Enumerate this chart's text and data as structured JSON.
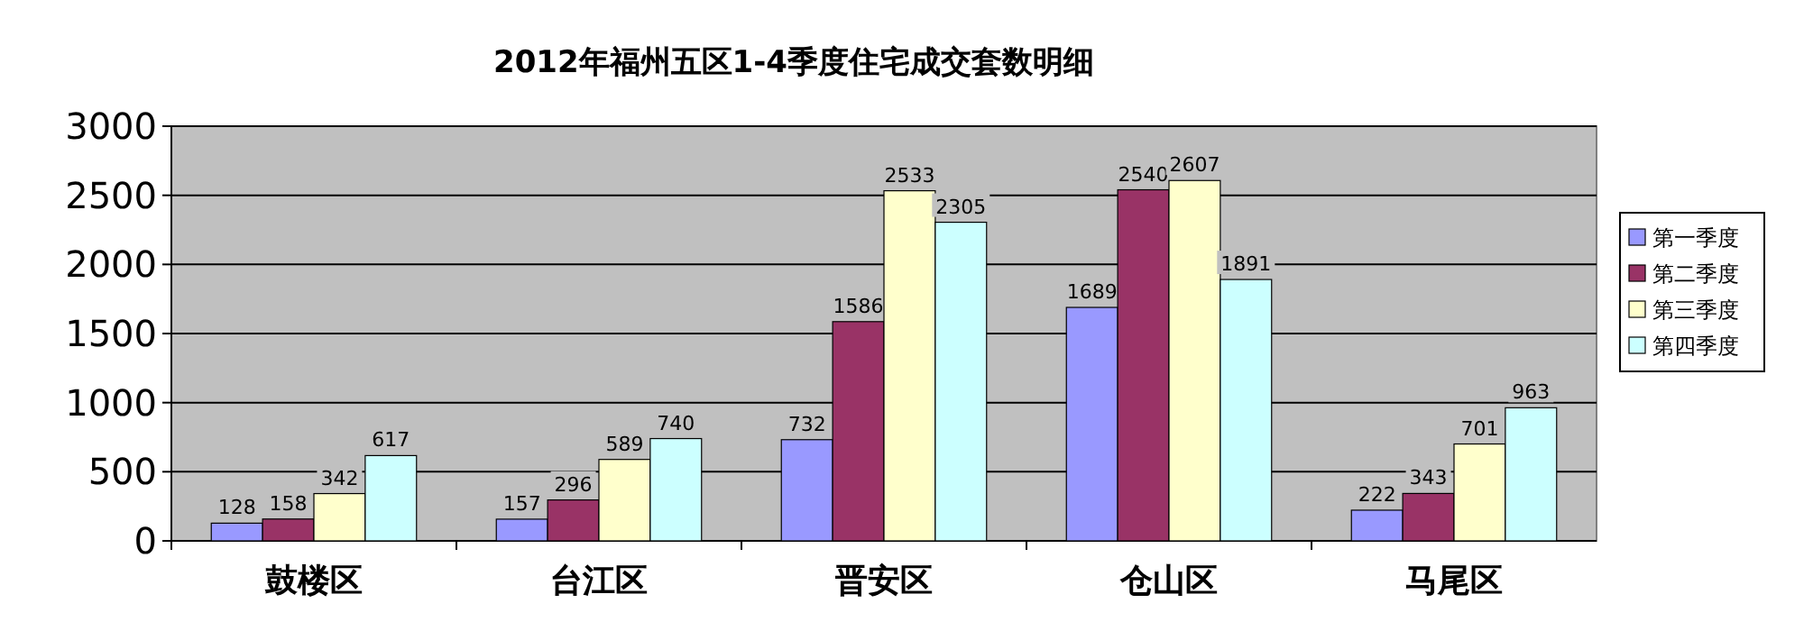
{
  "chart_data": {
    "type": "bar",
    "title": "2012年福州五区1-4季度住宅成交套数明细",
    "categories": [
      "鼓楼区",
      "台江区",
      "晋安区",
      "仓山区",
      "马尾区"
    ],
    "series": [
      {
        "name": "第一季度",
        "color": "#9999ff",
        "values": [
          128,
          157,
          732,
          1689,
          222
        ]
      },
      {
        "name": "第二季度",
        "color": "#993366",
        "values": [
          158,
          296,
          1586,
          2540,
          343
        ]
      },
      {
        "name": "第三季度",
        "color": "#ffffcc",
        "values": [
          342,
          589,
          2533,
          2607,
          701
        ]
      },
      {
        "name": "第四季度",
        "color": "#ccffff",
        "values": [
          617,
          740,
          2305,
          1891,
          963
        ]
      }
    ],
    "ylim": [
      0,
      3000
    ],
    "yticks": [
      0,
      500,
      1000,
      1500,
      2000,
      2500,
      3000
    ],
    "grid": "y",
    "legend": "right",
    "data_labels": true
  }
}
